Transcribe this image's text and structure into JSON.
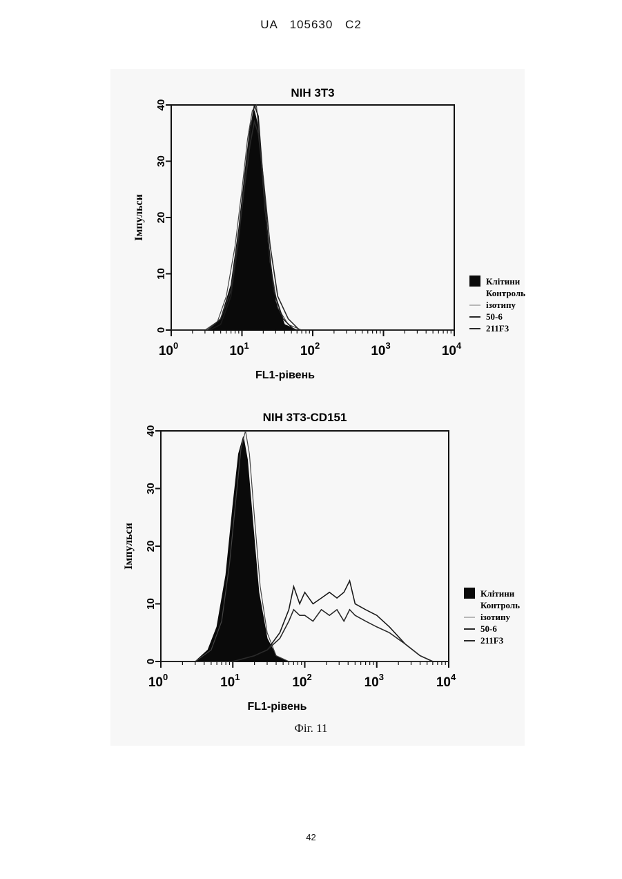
{
  "header": {
    "text": "UA   105630   C2"
  },
  "caption": "Фіг. 11",
  "page_number": "42",
  "chart_data": [
    {
      "type": "histogram",
      "title": "NIH 3T3",
      "xlabel": "FL1-рівень",
      "ylabel": "Імпульси",
      "x_scale": "log",
      "xlim": [
        1,
        10000
      ],
      "ylim": [
        0,
        40
      ],
      "x_ticks": [
        {
          "base": "10",
          "exp": "0"
        },
        {
          "base": "10",
          "exp": "1"
        },
        {
          "base": "10",
          "exp": "2"
        },
        {
          "base": "10",
          "exp": "3"
        },
        {
          "base": "10",
          "exp": "4"
        }
      ],
      "y_ticks": [
        "0",
        "10",
        "20",
        "30",
        "40"
      ],
      "legend_position": "right",
      "legend": [
        {
          "label": "Клітини",
          "style": "filled-black"
        },
        {
          "label": "Контроль",
          "style": "none"
        },
        {
          "label": "ізотипу",
          "style": "thin-line"
        },
        {
          "label": "50-6",
          "style": "line"
        },
        {
          "label": "211F3",
          "style": "line"
        }
      ],
      "series": [
        {
          "name": "Клітини",
          "fill": true,
          "x": [
            1,
            3.2,
            5,
            7,
            9,
            11,
            13,
            15,
            17,
            20,
            24,
            30,
            40,
            60,
            10000
          ],
          "y": [
            0,
            0,
            2,
            8,
            18,
            28,
            36,
            39,
            36,
            26,
            14,
            5,
            1,
            0,
            0
          ]
        },
        {
          "name": "Контроль ізотипу",
          "fill": false,
          "x": [
            1,
            3,
            4.5,
            6,
            8,
            10,
            12,
            14,
            16,
            18,
            21,
            25,
            32,
            45,
            70,
            10000
          ],
          "y": [
            0,
            0,
            1.5,
            6,
            15,
            25,
            34,
            39,
            40,
            33,
            22,
            12,
            4,
            1,
            0,
            0
          ]
        },
        {
          "name": "50-6",
          "fill": false,
          "x": [
            1,
            3.5,
            5,
            7,
            9,
            11,
            13,
            15,
            17,
            19,
            23,
            28,
            38,
            55,
            10000
          ],
          "y": [
            0,
            0,
            1,
            6,
            16,
            27,
            35,
            40,
            38,
            30,
            17,
            7,
            2,
            0,
            0
          ]
        },
        {
          "name": "211F3",
          "fill": false,
          "x": [
            1,
            3.3,
            5,
            7,
            9,
            11,
            13,
            15,
            17,
            20,
            25,
            32,
            45,
            65,
            10000
          ],
          "y": [
            0,
            0,
            2,
            7,
            17,
            26,
            33,
            37,
            35,
            27,
            15,
            6,
            2,
            0,
            0
          ]
        }
      ]
    },
    {
      "type": "histogram",
      "title": "NIH 3T3-CD151",
      "xlabel": "FL1-рівень",
      "ylabel": "Імпульси",
      "x_scale": "log",
      "xlim": [
        1,
        10000
      ],
      "ylim": [
        0,
        40
      ],
      "x_ticks": [
        {
          "base": "10",
          "exp": "0"
        },
        {
          "base": "10",
          "exp": "1"
        },
        {
          "base": "10",
          "exp": "2"
        },
        {
          "base": "10",
          "exp": "3"
        },
        {
          "base": "10",
          "exp": "4"
        }
      ],
      "y_ticks": [
        "0",
        "10",
        "20",
        "30",
        "40"
      ],
      "legend_position": "right",
      "legend": [
        {
          "label": "Клітини",
          "style": "filled-black"
        },
        {
          "label": "Контроль",
          "style": "none"
        },
        {
          "label": "ізотипу",
          "style": "thin-line"
        },
        {
          "label": "50-6",
          "style": "line"
        },
        {
          "label": "211F3",
          "style": "line"
        }
      ],
      "series": [
        {
          "name": "Клітини",
          "fill": true,
          "x": [
            1,
            3,
            4.5,
            6,
            8,
            10,
            12,
            14,
            16,
            19,
            23,
            30,
            40,
            60,
            10000
          ],
          "y": [
            0,
            0,
            2,
            6,
            15,
            27,
            36,
            39,
            35,
            24,
            12,
            4,
            1,
            0,
            0
          ]
        },
        {
          "name": "Контроль ізотипу",
          "fill": false,
          "x": [
            1,
            3,
            5,
            7,
            9,
            11,
            13,
            15,
            17,
            20,
            24,
            30,
            40,
            60,
            10000
          ],
          "y": [
            0,
            0,
            2,
            7,
            17,
            28,
            37,
            40,
            36,
            25,
            13,
            5,
            1,
            0,
            0
          ]
        },
        {
          "name": "50-6",
          "fill": false,
          "x": [
            1,
            10,
            20,
            30,
            45,
            60,
            70,
            85,
            100,
            130,
            170,
            220,
            280,
            350,
            420,
            500,
            700,
            1000,
            1500,
            2500,
            4000,
            6000,
            9000,
            10000
          ],
          "y": [
            0,
            0,
            1,
            2,
            5,
            9,
            13,
            10,
            12,
            10,
            11,
            12,
            11,
            12,
            14,
            10,
            9,
            8,
            6,
            3,
            1,
            0,
            0,
            0
          ]
        },
        {
          "name": "211F3",
          "fill": false,
          "x": [
            1,
            10,
            20,
            30,
            45,
            60,
            70,
            85,
            100,
            130,
            170,
            220,
            280,
            350,
            420,
            500,
            700,
            1000,
            1500,
            2500,
            4000,
            6000,
            9000,
            10000
          ],
          "y": [
            0,
            0,
            1,
            2,
            4,
            7,
            9,
            8,
            8,
            7,
            9,
            8,
            9,
            7,
            9,
            8,
            7,
            6,
            5,
            3,
            1,
            0,
            0,
            0
          ]
        }
      ]
    }
  ]
}
